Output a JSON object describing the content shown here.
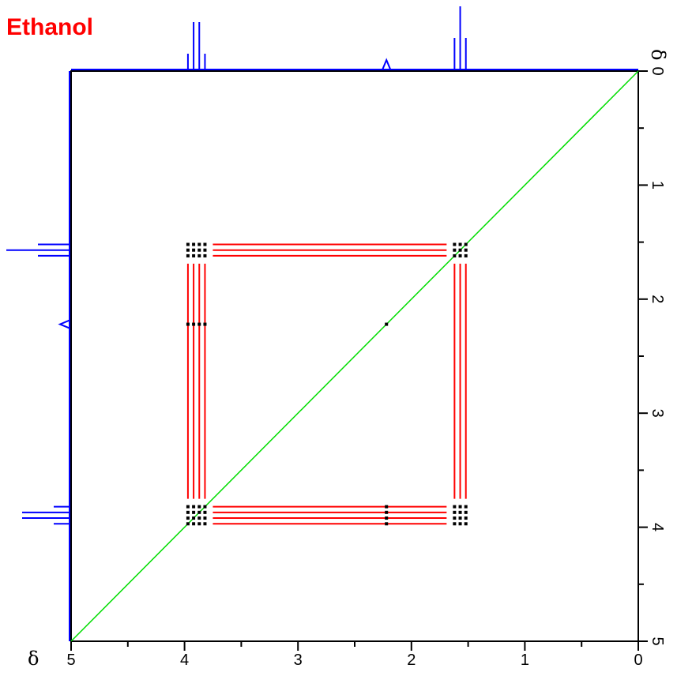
{
  "chart_data": {
    "type": "scatter",
    "title": "Ethanol",
    "title_color": "#ff0000",
    "xlabel": "δ",
    "ylabel": "δ",
    "xlim": [
      5,
      0
    ],
    "ylim": [
      0,
      5
    ],
    "x_ticks": [
      "5",
      "4",
      "3",
      "2",
      "1",
      "0"
    ],
    "y_ticks": [
      "0",
      "1",
      "2",
      "3",
      "4",
      "5"
    ],
    "grid": false,
    "spectrum_peaks": [
      {
        "shift": 3.92,
        "multiplet": "quartet",
        "lines": [
          3.97,
          3.92,
          3.87,
          3.82
        ],
        "intensities": [
          0.25,
          0.75,
          0.75,
          0.25
        ]
      },
      {
        "shift": 2.22,
        "multiplet": "singlet",
        "lines": [
          2.22
        ],
        "intensities": [
          0.15
        ]
      },
      {
        "shift": 1.57,
        "multiplet": "triplet",
        "lines": [
          1.62,
          1.57,
          1.52
        ],
        "intensities": [
          0.5,
          1.0,
          0.5
        ]
      }
    ],
    "diagonal_peaks": [
      3.92,
      2.22,
      1.57
    ],
    "cross_peaks": [
      {
        "x": 3.92,
        "y": 1.57
      },
      {
        "x": 1.57,
        "y": 3.92
      }
    ],
    "colors": {
      "spectrum": "#0000ff",
      "diagonal": "#00dd00",
      "coupling_lines": "#ff0000",
      "peaks": "#000000",
      "axes": "#000000"
    }
  }
}
